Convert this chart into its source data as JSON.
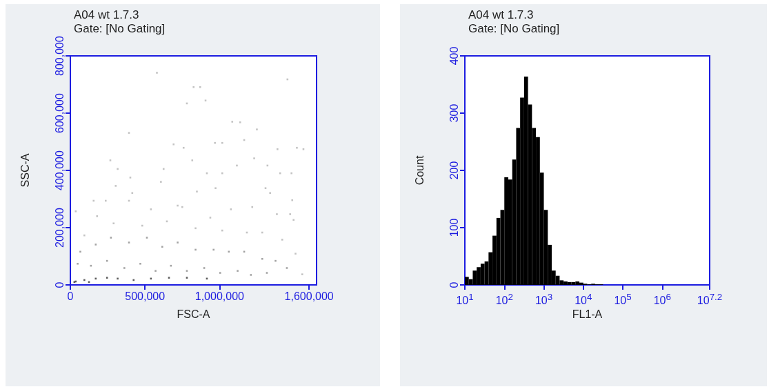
{
  "chart_data": [
    {
      "type": "scatter",
      "title": "A04 wt 1.7.3",
      "subtitle": "Gate: [No Gating]",
      "xlabel": "FSC-A",
      "ylabel": "SSC-A",
      "xlim": [
        0,
        1650000
      ],
      "ylim": [
        0,
        800000
      ],
      "xticks": [
        0,
        {
          "value": 500000,
          "label": "500,000"
        },
        {
          "value": 1000000,
          "label": "1,000,000"
        },
        {
          "value": 1600000,
          "label": "1,600,000"
        }
      ],
      "yticks": [
        0,
        {
          "value": 200000,
          "label": "200,000"
        },
        {
          "value": 400000,
          "label": "400,000"
        },
        {
          "value": 600000,
          "label": "600,000"
        },
        {
          "value": 800000,
          "label": "800,000"
        }
      ],
      "grid": false,
      "marker": "square",
      "series": [
        {
          "color": "#b4b4b4",
          "x": [
            580000,
            1455000,
            826000,
            870000,
            781000,
            906000,
            393000,
            1085000,
            1138000,
            1250000,
            1165000,
            969000,
            1018000,
            692000,
            1518000,
            1388000,
            1562000,
            268000,
            317000,
            625000,
            759000,
            817000,
            1116000,
            1232000,
            915000,
            1018000,
            1321000,
            1406000,
            1482000,
            304000,
            402000,
            607000,
            848000,
            973000,
            1308000,
            1339000,
            156000,
            237000,
            393000,
            415000,
            36000,
            719000,
            1219000,
            1487000,
            1384000,
            1473000,
            179000,
            540000,
            750000,
            1076000,
            938000,
            1496000,
            94000,
            290000,
            482000,
            647000,
            839000,
            1018000,
            1183000,
            1286000,
            1420000,
            1509000,
            1554000
          ],
          "values": [
            741000,
            718000,
            691000,
            691000,
            634000,
            644000,
            531000,
            570000,
            568000,
            543000,
            506000,
            496000,
            496000,
            491000,
            479000,
            474000,
            474000,
            435000,
            405000,
            405000,
            479000,
            435000,
            417000,
            442000,
            390000,
            390000,
            417000,
            390000,
            390000,
            346000,
            375000,
            360000,
            326000,
            338000,
            338000,
            321000,
            294000,
            294000,
            294000,
            321000,
            257000,
            277000,
            272000,
            296000,
            247000,
            247000,
            240000,
            264000,
            272000,
            264000,
            235000,
            227000,
            173000,
            215000,
            207000,
            222000,
            198000,
            190000,
            183000,
            183000,
            158000,
            109000,
            37000
          ]
        },
        {
          "color": "#8c8c8c",
          "x": [
            67000,
            170000,
            272000,
            393000,
            513000,
            616000,
            719000,
            839000,
            960000,
            1062000,
            1165000,
            1286000,
            1375000,
            1451000,
            49000,
            138000,
            246000,
            362000,
            469000,
            571000,
            674000,
            781000,
            897000,
            1004000,
            1121000,
            1210000,
            1317000
          ],
          "values": [
            116000,
            141000,
            165000,
            148000,
            165000,
            133000,
            148000,
            123000,
            123000,
            116000,
            116000,
            91000,
            84000,
            59000,
            74000,
            67000,
            84000,
            59000,
            74000,
            49000,
            67000,
            49000,
            59000,
            42000,
            49000,
            35000,
            42000
          ]
        },
        {
          "color": "#333333",
          "x": [
            36000,
            94000,
            170000,
            246000,
            317000,
            424000,
            540000,
            661000,
            781000,
            915000,
            27000,
            125000
          ],
          "values": [
            12000,
            17000,
            22000,
            25000,
            22000,
            17000,
            22000,
            25000,
            25000,
            22000,
            10000,
            10000
          ]
        }
      ]
    },
    {
      "type": "histogram",
      "title": "A04 wt 1.7.3",
      "subtitle": "Gate: [No Gating]",
      "xlabel": "FL1-A",
      "ylabel": "Count",
      "log": "x",
      "xlim": [
        10,
        15848932
      ],
      "ylim": [
        0,
        400
      ],
      "xticks": [
        {
          "value": 10,
          "label": "10$^{1}$"
        },
        {
          "value": 100,
          "label": "10$^{2}$"
        },
        {
          "value": 1000,
          "label": "10$^{3}$"
        },
        {
          "value": 10000,
          "label": "10$^{4}$"
        },
        {
          "value": 100000,
          "label": "10$^{5}$"
        },
        {
          "value": 1000000,
          "label": "10$^{6}$"
        },
        {
          "value": 15848932,
          "label": "10$^{7.2}$"
        }
      ],
      "yticks": [
        0,
        100,
        200,
        300,
        400
      ],
      "grid": false,
      "color": "#000000",
      "bins": [
        10,
        12.59,
        15.85,
        19.95,
        25.12,
        31.62,
        39.81,
        50.12,
        63.1,
        79.43,
        100,
        125.9,
        158.5,
        199.5,
        251.2,
        316.2,
        398.1,
        501.2,
        631,
        794.3,
        1000,
        1259,
        1585,
        1995,
        2512,
        3162,
        3981,
        5012,
        6310,
        7943,
        10000,
        12589,
        15849,
        19953,
        25119,
        31623
      ],
      "values": [
        14,
        10,
        25,
        31,
        37,
        41,
        57,
        86,
        117,
        131,
        188,
        184,
        219,
        274,
        327,
        364,
        315,
        274,
        258,
        196,
        131,
        70,
        25,
        16,
        8,
        6,
        5,
        5,
        6,
        4,
        2,
        1,
        2,
        1,
        1
      ]
    }
  ]
}
